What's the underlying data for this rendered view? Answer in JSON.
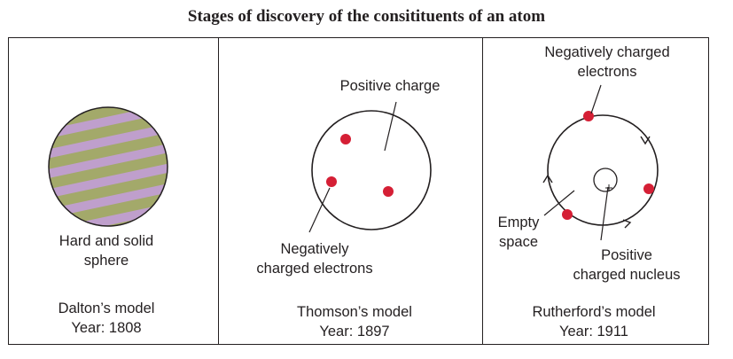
{
  "title": "Stages of discovery of the consitituents of an atom",
  "dalton": {
    "caption_line1": "Hard and solid",
    "caption_line2": "sphere",
    "model_name": "Dalton’s model",
    "year": "Year: 1808"
  },
  "thomson": {
    "positive_label": "Positive charge",
    "electrons_line1": "Negatively",
    "electrons_line2": "charged electrons",
    "model_name": "Thomson’s model",
    "year": "Year: 1897"
  },
  "rutherford": {
    "electrons_line1": "Negatively charged",
    "electrons_line2": "electrons",
    "empty_line1": "Empty",
    "empty_line2": "space",
    "nucleus_line1": "Positive",
    "nucleus_line2": "charged nucleus",
    "model_name": "Rutherford’s model",
    "year": "Year: 1911"
  },
  "colors": {
    "stripe_green": "#a3a96a",
    "stripe_purple": "#bf9fcc",
    "electron_red": "#d51f35",
    "line": "#231f20"
  }
}
